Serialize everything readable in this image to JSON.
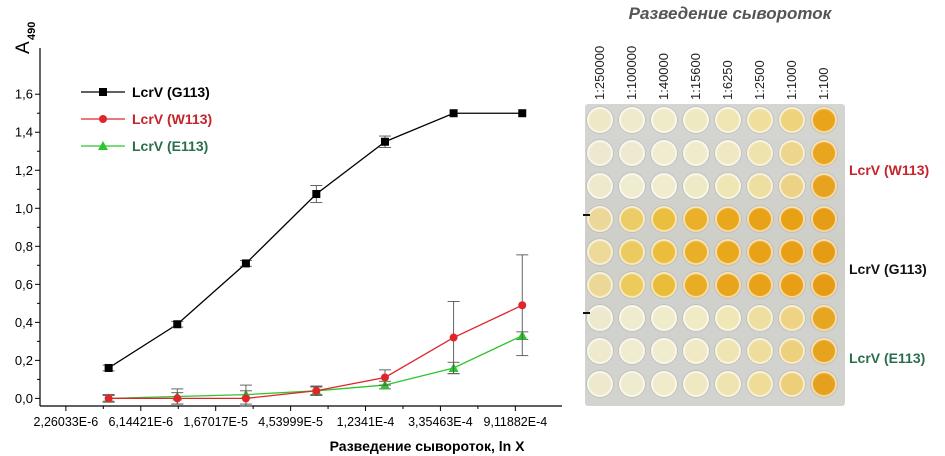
{
  "chart_data": {
    "type": "line",
    "ylabel": "A",
    "ylabel_sub": "490",
    "xlabel": "Разведение сывороток, ln X",
    "x_scale": "log",
    "xlim": [
      1.6e-06,
      0.0017
    ],
    "ylim": [
      -0.04,
      1.78
    ],
    "y_ticks": [
      0.0,
      0.2,
      0.4,
      0.6,
      0.8,
      1.0,
      1.2,
      1.4,
      1.6
    ],
    "y_tick_labels": [
      "0,0",
      "0,2",
      "0,4",
      "0,6",
      "0,8",
      "1,0",
      "1,2",
      "1,4",
      "1,6"
    ],
    "x_ticks": [
      2.26033e-06,
      6.14421e-06,
      1.67017e-05,
      4.53999e-05,
      0.00012341,
      0.000335463,
      0.000911882
    ],
    "x_tick_labels": [
      "2,26033E-6",
      "6,14421E-6",
      "1,67017E-5",
      "4,53999E-5",
      "1,2341E-4",
      "3,35463E-4",
      "9,11882E-4"
    ],
    "x": [
      4e-06,
      1e-05,
      2.5e-05,
      6.4e-05,
      0.00016,
      0.0004,
      0.001
    ],
    "legend_position": "top-left",
    "series": [
      {
        "name": "LcrV (G113)",
        "color": "#000000",
        "marker": "square",
        "values": [
          0.16,
          0.39,
          0.71,
          1.075,
          1.35,
          1.5,
          1.5
        ],
        "errors": [
          0.015,
          0.015,
          0.015,
          0.045,
          0.03,
          0.0,
          0.0
        ]
      },
      {
        "name": "LcrV (W113)",
        "color": "#e0262b",
        "marker": "circle",
        "values": [
          0.0,
          0.0,
          0.0,
          0.04,
          0.11,
          0.32,
          0.49
        ],
        "errors": [
          0.02,
          0.03,
          0.04,
          0.025,
          0.04,
          0.19,
          0.265
        ]
      },
      {
        "name": "LcrV (E113)",
        "color": "#2ec52e",
        "marker": "triangle",
        "values": [
          0.0,
          0.01,
          0.02,
          0.04,
          0.07,
          0.16,
          0.33
        ],
        "errors": [
          0.015,
          0.04,
          0.05,
          0.02,
          0.02,
          0.03,
          0.02
        ]
      }
    ]
  },
  "plate": {
    "title": "Разведение сывороток",
    "dilutions": [
      "1:250000",
      "1:100000",
      "1:40000",
      "1:15600",
      "1:6250",
      "1:2500",
      "1:1000",
      "1:100"
    ],
    "row_labels": [
      {
        "text": "LcrV (W113)",
        "color": "#c4242a"
      },
      {
        "text": "LcrV (G113)",
        "color": "#111111"
      },
      {
        "text": "LcrV (E113)",
        "color": "#2a6e4c"
      }
    ],
    "well_colors": [
      [
        "#eee8c6",
        "#eeeacb",
        "#efebc9",
        "#efe9c1",
        "#f0e6b3",
        "#efdf9c",
        "#eed27c",
        "#e9a41c"
      ],
      [
        "#ede9cf",
        "#eeead0",
        "#efeccf",
        "#f0eccb",
        "#efe8c2",
        "#eee2ad",
        "#edd68c",
        "#e8a51f"
      ],
      [
        "#eee9cc",
        "#efecd0",
        "#f0eccd",
        "#efeac6",
        "#efe6b6",
        "#eedea0",
        "#edd184",
        "#e7a320"
      ],
      [
        "#ecd79a",
        "#eccc66",
        "#ebbf3e",
        "#e9b028",
        "#e9a71c",
        "#e8a218",
        "#e8a015",
        "#e69c15"
      ],
      [
        "#edd998",
        "#ebca5f",
        "#ebbd3b",
        "#e9b027",
        "#e9a71a",
        "#e8a217",
        "#e89f15",
        "#e69b14"
      ],
      [
        "#ecd896",
        "#ecca5c",
        "#eabd38",
        "#e9ad25",
        "#e8a51b",
        "#e8a217",
        "#e89e15",
        "#e69b14"
      ],
      [
        "#eee9ce",
        "#efebcf",
        "#efeccc",
        "#f0ebc5",
        "#efe7b6",
        "#eede9f",
        "#eed384",
        "#e6a622"
      ],
      [
        "#efeacd",
        "#efecd0",
        "#f0ecce",
        "#f0e9c3",
        "#efe5b3",
        "#eedd9c",
        "#edd07e",
        "#e6a41e"
      ],
      [
        "#eee9cc",
        "#efebce",
        "#f0ebcb",
        "#f0e8c0",
        "#efe4af",
        "#eedc97",
        "#edcf7a",
        "#e5a11d"
      ]
    ]
  }
}
